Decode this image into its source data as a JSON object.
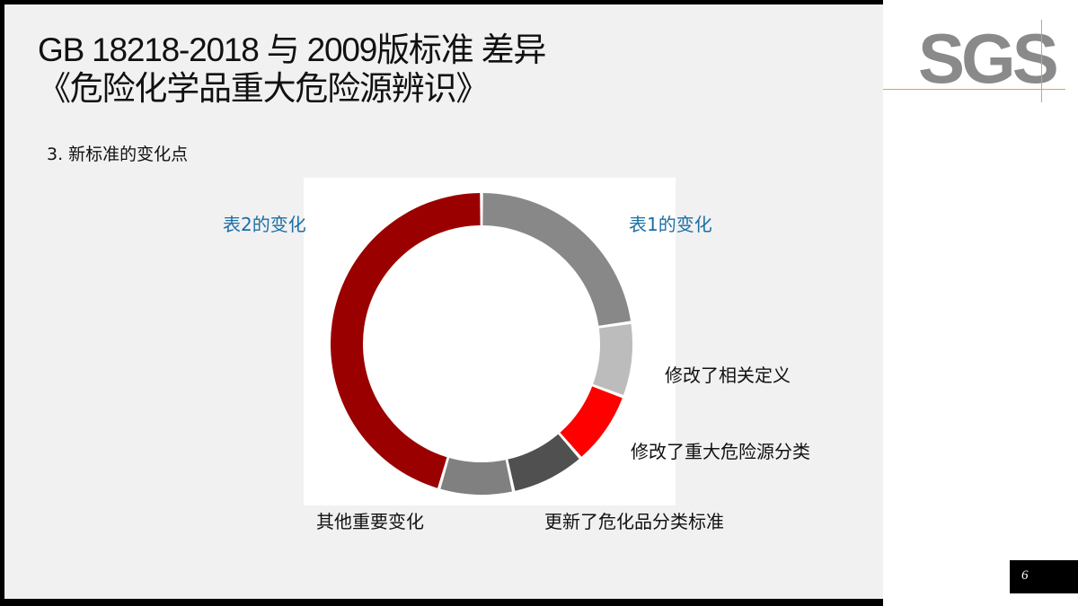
{
  "slide": {
    "title_line1": "GB 18218-2018 与 2009版标准 差异",
    "title_line2": "《危险化学品重大危险源辨识》",
    "subtitle": "3. 新标准的变化点",
    "page_number": "6"
  },
  "logo": {
    "text": "SGS"
  },
  "chart_data": {
    "type": "donut",
    "slices": [
      {
        "label": "表1的变化",
        "value": 20,
        "color": "#888888"
      },
      {
        "label": "修改了相关定义",
        "value": 7,
        "color": "#bcbcbc"
      },
      {
        "label": "修改了重大危险源分类",
        "value": 7,
        "color": "#ff0000"
      },
      {
        "label": "更新了危化品分类标准",
        "value": 7,
        "color": "#505050"
      },
      {
        "label": "其他重要变化",
        "value": 7,
        "color": "#808080"
      },
      {
        "label": "表2的变化",
        "value": 40,
        "color": "#9b0000"
      }
    ]
  }
}
